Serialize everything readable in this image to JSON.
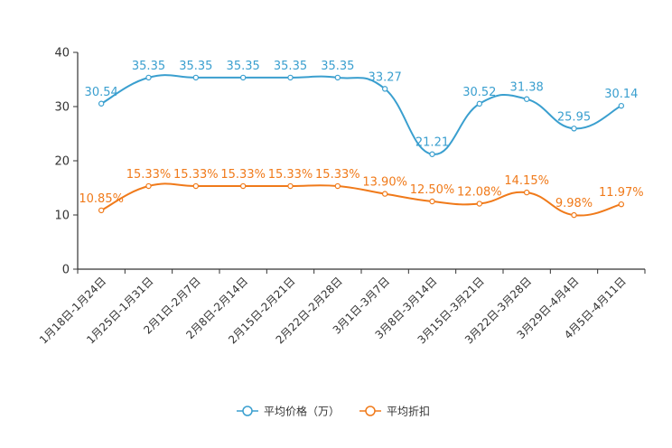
{
  "chart_data": {
    "type": "line",
    "categories": [
      "1月18日-1月24日",
      "1月25日-1月31日",
      "2月1日-2月7日",
      "2月8日-2月14日",
      "2月15日-2月21日",
      "2月22日-2月28日",
      "3月1日-3月7日",
      "3月8日-3月14日",
      "3月15日-3月21日",
      "3月22日-3月28日",
      "3月29日-4月4日",
      "4月5日-4月11日"
    ],
    "ylim": [
      0,
      40
    ],
    "yticks": [
      0,
      10,
      20,
      30,
      40
    ],
    "series": [
      {
        "name": "平均价格（万）",
        "color": "#3a9fcf",
        "values": [
          30.54,
          35.35,
          35.35,
          35.35,
          35.35,
          35.35,
          33.27,
          21.21,
          30.52,
          31.38,
          25.95,
          30.14
        ],
        "labels": [
          "30.54",
          "35.35",
          "35.35",
          "35.35",
          "35.35",
          "35.35",
          "33.27",
          "21.21",
          "30.52",
          "31.38",
          "25.95",
          "30.14"
        ]
      },
      {
        "name": "平均折扣",
        "color": "#f07a1a",
        "values": [
          10.85,
          15.33,
          15.33,
          15.33,
          15.33,
          15.33,
          13.9,
          12.5,
          12.08,
          14.15,
          9.98,
          11.97
        ],
        "labels": [
          "10.85%",
          "15.33%",
          "15.33%",
          "15.33%",
          "15.33%",
          "15.33%",
          "13.90%",
          "12.50%",
          "12.08%",
          "14.15%",
          "9.98%",
          "11.97%"
        ]
      }
    ],
    "legend_position": "bottom"
  }
}
